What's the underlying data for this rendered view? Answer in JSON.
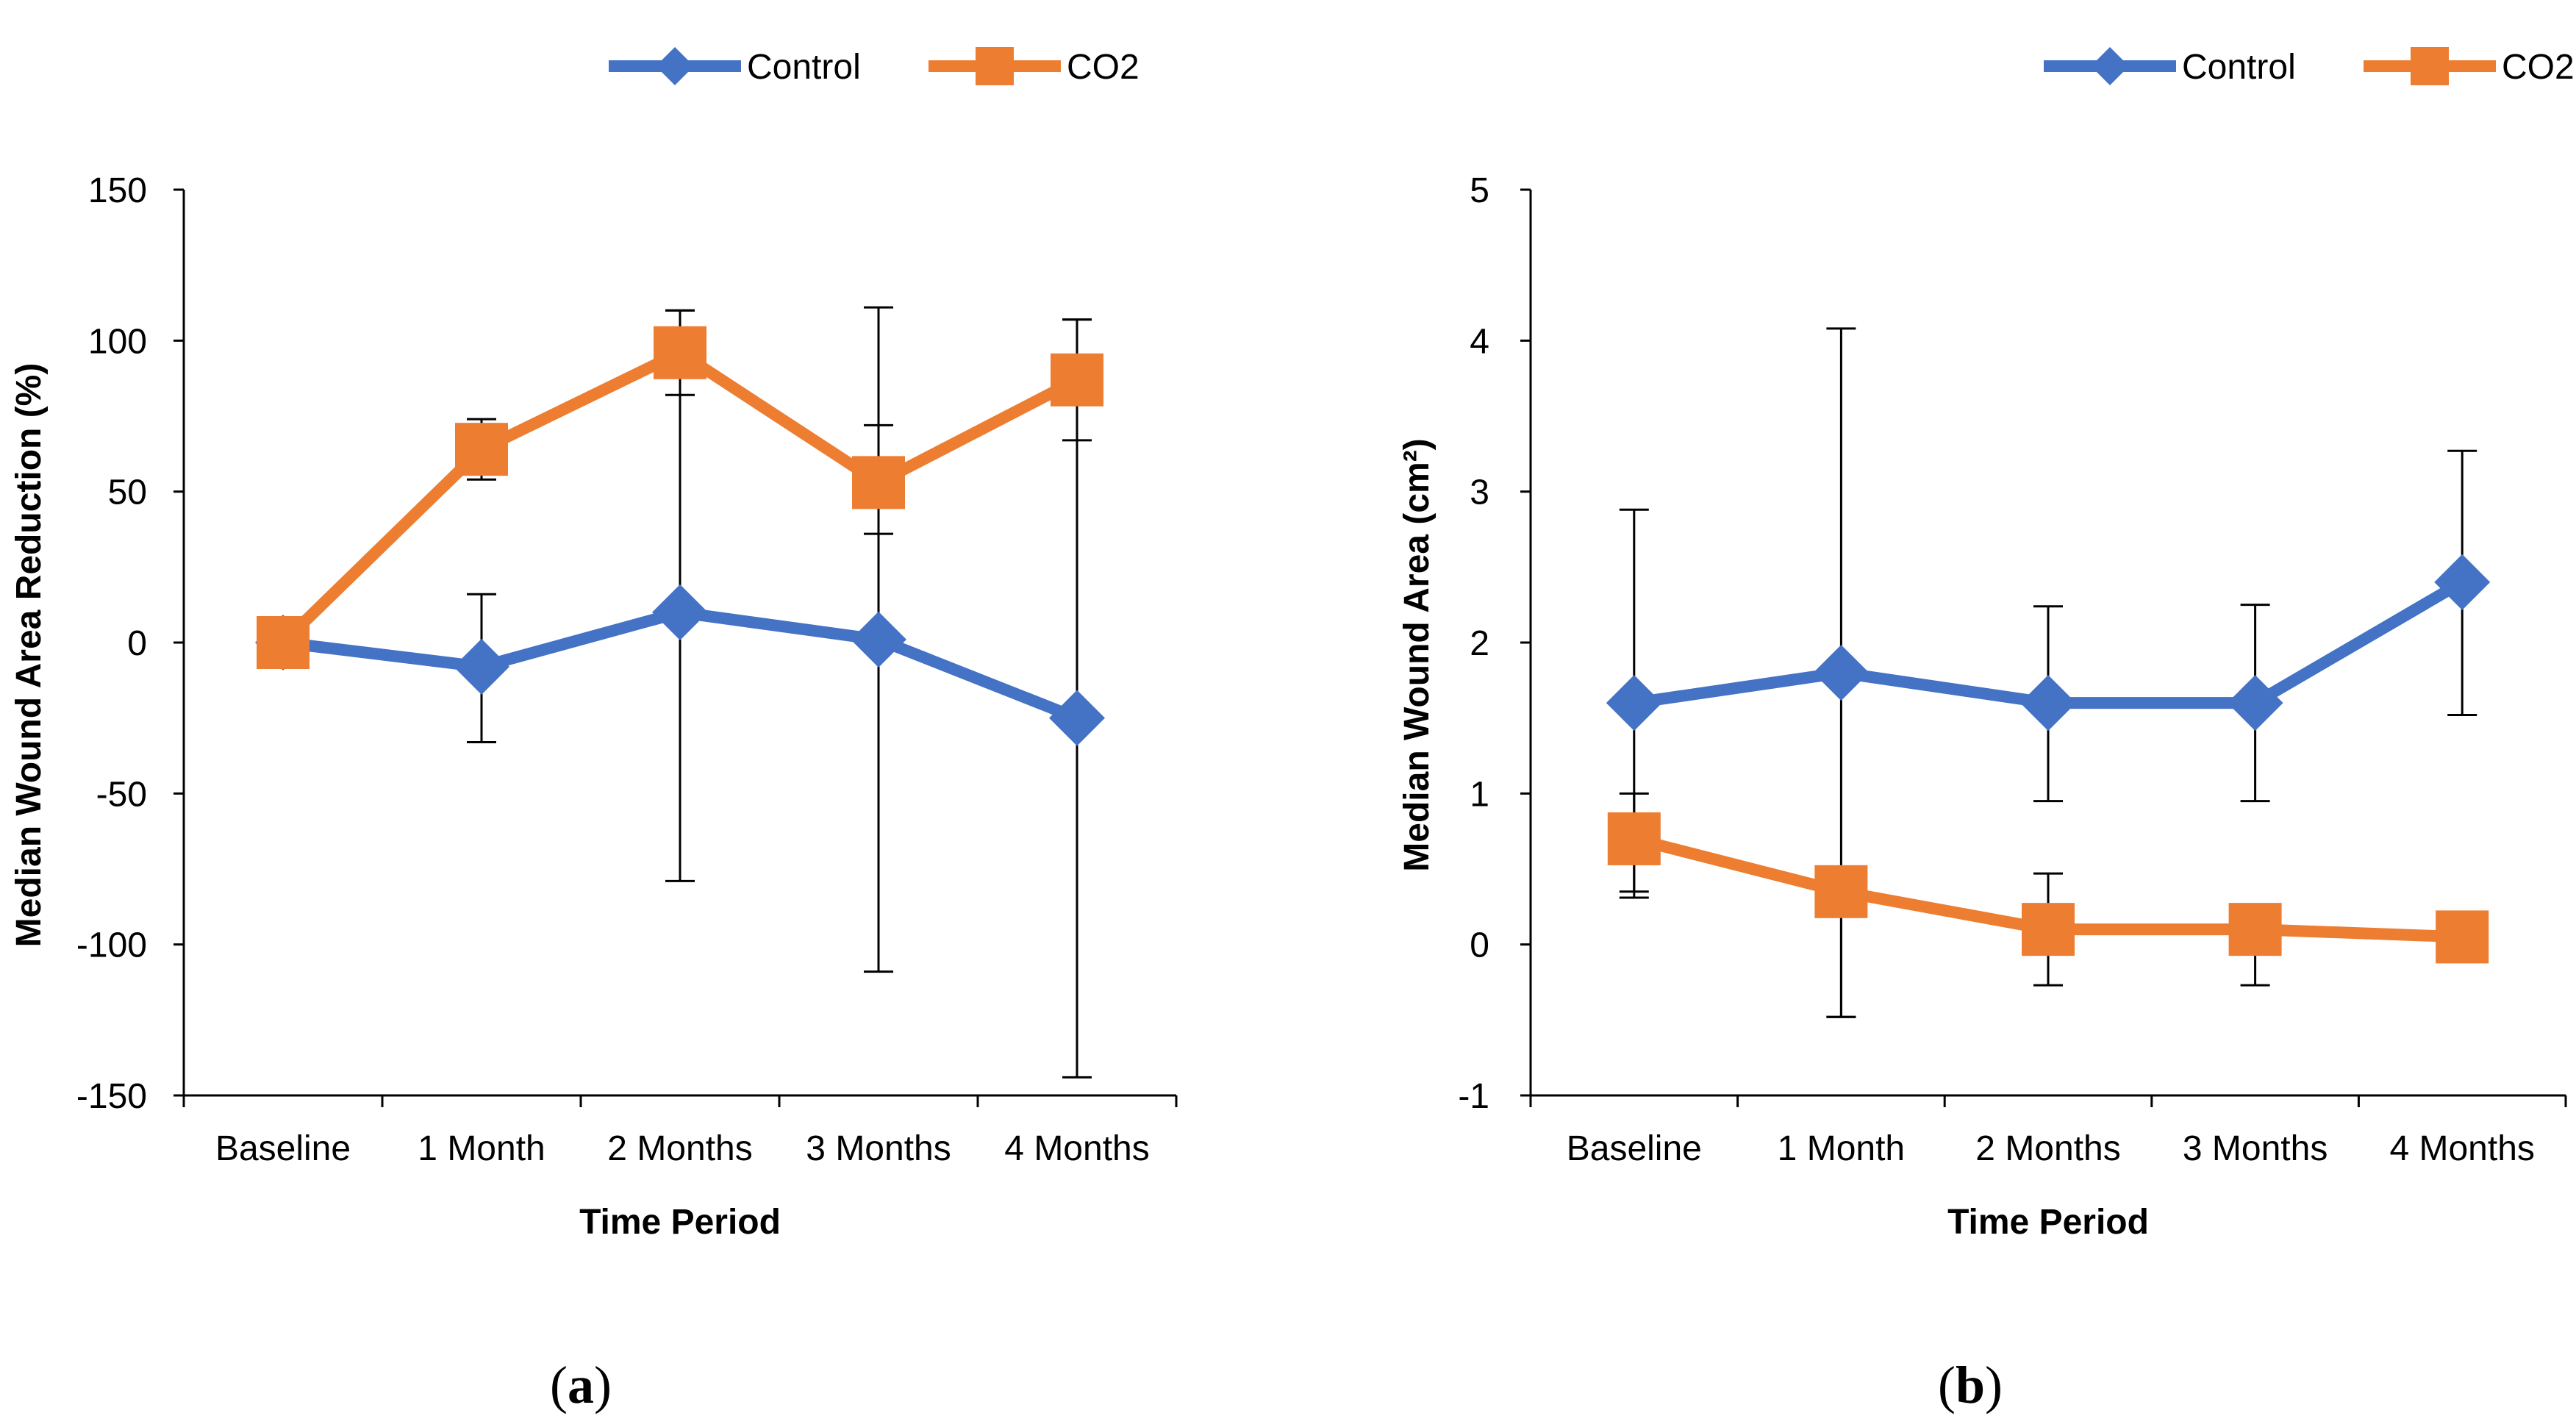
{
  "colors": {
    "control": "#4472C4",
    "co2": "#ED7D31",
    "axis": "#000000",
    "errorbar": "#000000"
  },
  "chart_data": [
    {
      "type": "line",
      "panel_label": "a",
      "title": "",
      "xlabel": "Time Period",
      "ylabel": "Median Wound Area Reduction (%)",
      "categories": [
        "Baseline",
        "1 Month",
        "2 Months",
        "3 Months",
        "4 Months"
      ],
      "ylim": [
        -150,
        150
      ],
      "yticks": [
        150,
        100,
        50,
        0,
        -50,
        -100,
        -150
      ],
      "legend": "top-right",
      "grid": false,
      "series": [
        {
          "name": "Control",
          "marker": "diamond",
          "color": "#4472C4",
          "values": [
            0,
            -8,
            10,
            1,
            -25
          ],
          "err_low": [
            0,
            -33,
            -79,
            -109,
            -144
          ],
          "err_high": [
            0,
            16,
            110,
            111,
            107
          ]
        },
        {
          "name": "CO2",
          "marker": "square",
          "color": "#ED7D31",
          "values": [
            0,
            64,
            96,
            53,
            87
          ],
          "err_low": [
            0,
            54,
            82,
            36,
            67
          ],
          "err_high": [
            0,
            74,
            110,
            72,
            107
          ]
        }
      ]
    },
    {
      "type": "line",
      "panel_label": "b",
      "title": "",
      "xlabel": "Time Period",
      "ylabel": "Median Wound Area (cm²)",
      "categories": [
        "Baseline",
        "1 Month",
        "2 Months",
        "3 Months",
        "4 Months"
      ],
      "ylim": [
        -1,
        5
      ],
      "yticks": [
        5,
        4,
        3,
        2,
        1,
        0,
        -1
      ],
      "legend": "top-right",
      "grid": false,
      "series": [
        {
          "name": "Control",
          "marker": "diamond",
          "color": "#4472C4",
          "values": [
            1.6,
            1.8,
            1.6,
            1.6,
            2.4
          ],
          "err_low": [
            0.35,
            -0.48,
            0.95,
            0.95,
            1.52
          ],
          "err_high": [
            2.88,
            4.08,
            2.24,
            2.25,
            3.27
          ]
        },
        {
          "name": "CO2",
          "marker": "square",
          "color": "#ED7D31",
          "values": [
            0.7,
            0.35,
            0.1,
            0.1,
            0.05
          ],
          "err_low": [
            0.31,
            -0.48,
            -0.27,
            -0.27,
            0.05
          ],
          "err_high": [
            1.0,
            0.35,
            0.47,
            0.1,
            0.05
          ]
        }
      ]
    }
  ]
}
